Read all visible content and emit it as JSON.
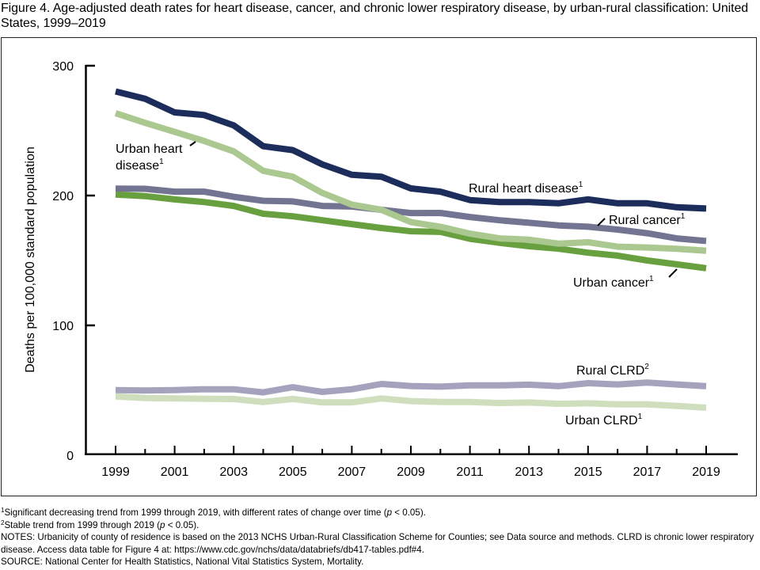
{
  "figure": {
    "title": "Figure 4. Age-adjusted death rates for heart disease, cancer, and chronic lower respiratory disease, by urban-rural classification: United States, 1999–2019"
  },
  "chart_data": {
    "type": "line",
    "title": "Age-adjusted death rates for heart disease, cancer, and chronic lower respiratory disease, by urban-rural classification: United States, 1999–2019",
    "xlabel": "",
    "ylabel": "Deaths per 100,000 standard population",
    "x": [
      1999,
      2000,
      2001,
      2002,
      2003,
      2004,
      2005,
      2006,
      2007,
      2008,
      2009,
      2010,
      2011,
      2012,
      2013,
      2014,
      2015,
      2016,
      2017,
      2018,
      2019
    ],
    "xlim": [
      1999,
      2019
    ],
    "ylim": [
      0,
      300
    ],
    "x_tick_labels": [
      "1999",
      "2001",
      "2003",
      "2005",
      "2007",
      "2009",
      "2011",
      "2013",
      "2015",
      "2017",
      "2019"
    ],
    "y_tick_labels": [
      "0",
      "100",
      "200",
      "300"
    ],
    "y_ticks": [
      0,
      100,
      200,
      300
    ],
    "grid": false,
    "legend": "direct labels on lines",
    "series": [
      {
        "name": "Rural heart disease",
        "label": "Rural heart disease",
        "sup": "1",
        "color": "#1c2d5c",
        "values": [
          280.2,
          274.5,
          264.0,
          262.0,
          254.0,
          238.0,
          235.0,
          224.0,
          216.0,
          214.5,
          205.5,
          203.0,
          196.5,
          195.0,
          195.0,
          194.0,
          197.0,
          194.0,
          194.0,
          191.0,
          190.0
        ]
      },
      {
        "name": "Urban heart disease",
        "label": "Urban heart disease",
        "sup": "1",
        "color": "#abc891",
        "values": [
          263.5,
          256.0,
          249.0,
          242.0,
          234.0,
          219.0,
          214.5,
          202.0,
          193.0,
          189.0,
          179.5,
          176.0,
          170.7,
          167.0,
          166.0,
          163.0,
          164.0,
          160.6,
          160.0,
          159.0,
          157.5
        ]
      },
      {
        "name": "Rural cancer",
        "label": "Rural cancer",
        "sup": "1",
        "color": "#737491",
        "values": [
          205.3,
          205.2,
          203.0,
          203.0,
          199.0,
          196.0,
          195.5,
          192.0,
          191.5,
          189.0,
          186.5,
          186.6,
          183.5,
          181.0,
          179.0,
          177.0,
          176.0,
          173.8,
          171.0,
          167.0,
          165.0
        ]
      },
      {
        "name": "Urban cancer",
        "label": "Urban cancer",
        "sup": "1",
        "color": "#68a040",
        "values": [
          200.8,
          199.6,
          197.0,
          195.0,
          192.0,
          186.0,
          184.0,
          181.0,
          178.0,
          175.0,
          172.5,
          172.0,
          166.7,
          163.6,
          161.0,
          159.0,
          156.0,
          153.7,
          150.0,
          147.0,
          144.0
        ]
      },
      {
        "name": "Rural CLRD",
        "label": "Rural CLRD",
        "sup": "2",
        "color": "#a4a2bd",
        "values": [
          50.2,
          49.8,
          50.2,
          50.8,
          50.8,
          48.4,
          52.4,
          48.8,
          50.8,
          54.9,
          53.3,
          52.8,
          53.8,
          53.8,
          54.3,
          53.2,
          55.5,
          54.5,
          55.9,
          54.5,
          53.2
        ]
      },
      {
        "name": "Urban CLRD",
        "label": "Urban CLRD",
        "sup": "1",
        "color": "#cfdebd",
        "values": [
          45.3,
          44.0,
          43.7,
          43.5,
          43.3,
          41.0,
          43.3,
          40.7,
          40.7,
          43.7,
          41.7,
          41.0,
          41.0,
          40.2,
          40.6,
          39.6,
          40.0,
          39.2,
          39.2,
          38.0,
          36.6
        ]
      }
    ]
  },
  "labels": {
    "urban_heart_line1": "Urban heart",
    "urban_heart_line2": "disease",
    "urban_heart_sup": "1",
    "rural_heart": "Rural heart disease",
    "rural_heart_sup": "1",
    "rural_cancer": "Rural cancer",
    "rural_cancer_sup": "1",
    "urban_cancer": "Urban cancer",
    "urban_cancer_sup": "1",
    "rural_clrd": "Rural CLRD",
    "rural_clrd_sup": "2",
    "urban_clrd": "Urban CLRD",
    "urban_clrd_sup": "1"
  },
  "footnotes": {
    "note1_sup": "1",
    "note1_text": "Significant decreasing trend from 1999 through 2019, with different rates of change over time (",
    "note1_p": "p",
    "note1_end": " < 0.05).",
    "note2_sup": "2",
    "note2_text": "Stable trend from 1999 through 2019 (",
    "note2_p": "p",
    "note2_end": " < 0.05).",
    "notes": "NOTES: Urbanicity of county of residence is based on the 2013 NCHS Urban-Rural Classification Scheme for Counties; see Data source and methods. CLRD is chronic lower respiratory disease. Access data table for Figure 4 at: https://www.cdc.gov/nchs/data/databriefs/db417-tables.pdf#4.",
    "source": "SOURCE: National Center for Health Statistics, National Vital Statistics System, Mortality."
  }
}
